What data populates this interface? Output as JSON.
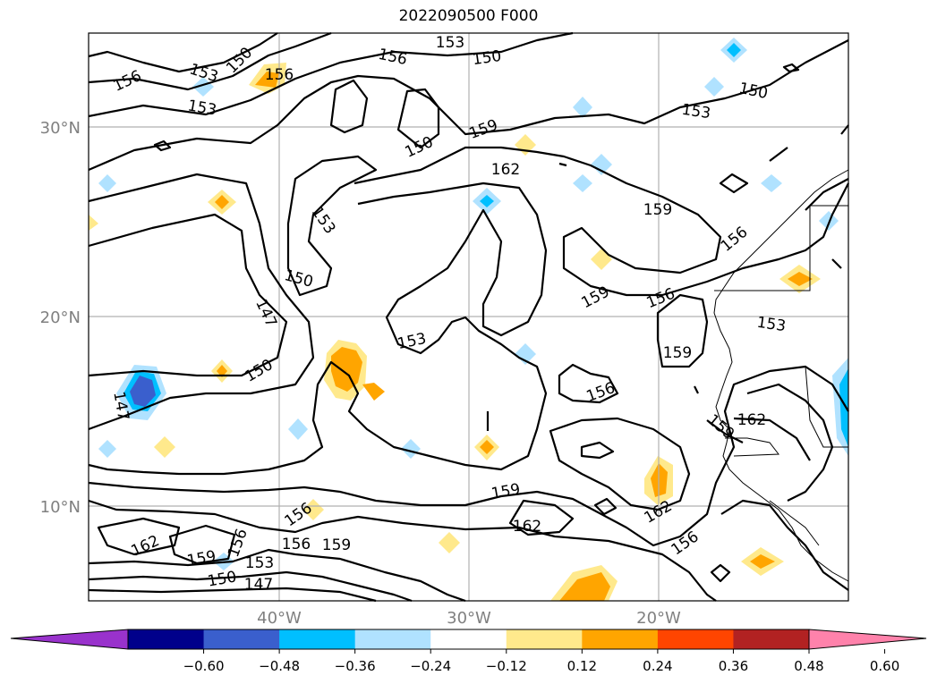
{
  "title": "2022090500 F000",
  "map": {
    "lat_labels": [
      "30°N",
      "20°N",
      "10°N"
    ],
    "lon_labels": [
      "40°W",
      "30°W",
      "20°W"
    ],
    "contour_labels": [
      "156",
      "153",
      "150",
      "156",
      "153",
      "156",
      "153",
      "150",
      "150",
      "162",
      "153",
      "150",
      "147",
      "150",
      "159",
      "153",
      "156",
      "159",
      "156",
      "159",
      "156",
      "153",
      "159",
      "147",
      "156",
      "162",
      "159",
      "159",
      "162",
      "162",
      "162",
      "159",
      "156",
      "159",
      "153",
      "150",
      "147",
      "156"
    ]
  },
  "colorbar": {
    "tick_labels": [
      "−0.60",
      "−0.48",
      "−0.36",
      "−0.24",
      "−0.12",
      "0.12",
      "0.24",
      "0.36",
      "0.48",
      "0.60"
    ],
    "colors": [
      "#9932cc",
      "#00008b",
      "#3a5fcd",
      "#00bfff",
      "#b0e2ff",
      "#ffffff",
      "#ffe98c",
      "#ffa500",
      "#ff4500",
      "#b22222",
      "#ff82ab"
    ]
  }
}
